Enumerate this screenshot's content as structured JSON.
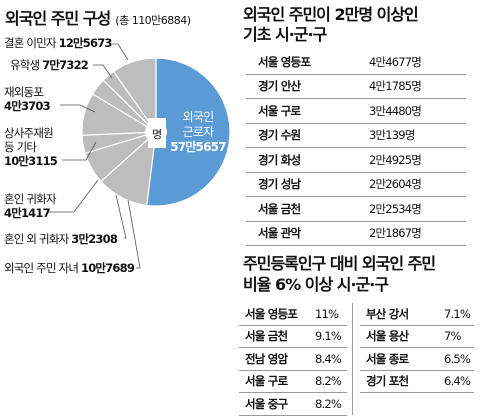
{
  "title": "외국인 주민 구성",
  "total": "(총 110만6884)",
  "pie_center": "명",
  "chart_data": {
    "type": "pie",
    "title": "외국인 주민 구성",
    "unit": "명",
    "slices": [
      {
        "label": "외국인 근로자",
        "display": "57만5657",
        "value": 575657,
        "color": "#5b9bd5"
      },
      {
        "label": "결혼 이민자",
        "display": "12만5673",
        "value": 125673,
        "color": "#bdbdbd"
      },
      {
        "label": "유학생",
        "display": "7만7322",
        "value": 77322,
        "color": "#bdbdbd"
      },
      {
        "label": "재외동포",
        "display": "4만3703",
        "value": 43703,
        "color": "#bdbdbd"
      },
      {
        "label": "상사주재원 등 기타",
        "display": "10만3115",
        "value": 103115,
        "color": "#bdbdbd"
      },
      {
        "label": "혼인 귀화자",
        "display": "4만1417",
        "value": 41417,
        "color": "#bdbdbd"
      },
      {
        "label": "혼인 외 귀화자",
        "display": "3만2308",
        "value": 32308,
        "color": "#bdbdbd"
      },
      {
        "label": "외국인 주민 자녀",
        "display": "10만7689",
        "value": 107689,
        "color": "#bdbdbd"
      }
    ]
  },
  "labels": {
    "marriage": {
      "name": "결혼 이민자",
      "value": "12만5673"
    },
    "student": {
      "name": "유학생",
      "value": "7만7322"
    },
    "overseas1": "재외동포",
    "overseas2": "4만3703",
    "trade1": "상사주재원",
    "trade2": "등 기타",
    "trade3": "10만3115",
    "natur1": "혼인 귀화자",
    "natur2": "4만1417",
    "natur_other": {
      "name": "혼인 외 귀화자",
      "value": "3만2308"
    },
    "children": {
      "name": "외국인 주민 자녀",
      "value": "10만7689"
    },
    "worker1": "외국인",
    "worker2": "근로자",
    "worker3": "57만5657"
  },
  "table1": {
    "title_line1": "외국인 주민이 2만명 이상인",
    "title_line2": "기초 시·군·구",
    "rows": [
      {
        "region": "서울 영등포",
        "count": "4만4677명"
      },
      {
        "region": "경기 안산",
        "count": "4만1785명"
      },
      {
        "region": "서울 구로",
        "count": "3만4480명"
      },
      {
        "region": "경기 수원",
        "count": "3만139명"
      },
      {
        "region": "경기 화성",
        "count": "2만4925명"
      },
      {
        "region": "경기 성남",
        "count": "2만2604명"
      },
      {
        "region": "서울 금천",
        "count": "2만2534명"
      },
      {
        "region": "서울 관악",
        "count": "2만1867명"
      }
    ]
  },
  "table2": {
    "title_line1": "주민등록인구 대비 외국인 주민",
    "title_line2": "비율 6% 이상 시·군·구",
    "left": [
      {
        "region": "서울 영등포",
        "ratio": "11%"
      },
      {
        "region": "서울 금천",
        "ratio": "9.1%"
      },
      {
        "region": "전남 영암",
        "ratio": "8.4%"
      },
      {
        "region": "서울 구로",
        "ratio": "8.2%"
      },
      {
        "region": "서울 중구",
        "ratio": "8.2%"
      }
    ],
    "right": [
      {
        "region": "부산 강서",
        "ratio": "7.1%"
      },
      {
        "region": "서울 용산",
        "ratio": "7%"
      },
      {
        "region": "서울 종로",
        "ratio": "6.5%"
      },
      {
        "region": "경기 포천",
        "ratio": "6.4%"
      }
    ]
  }
}
